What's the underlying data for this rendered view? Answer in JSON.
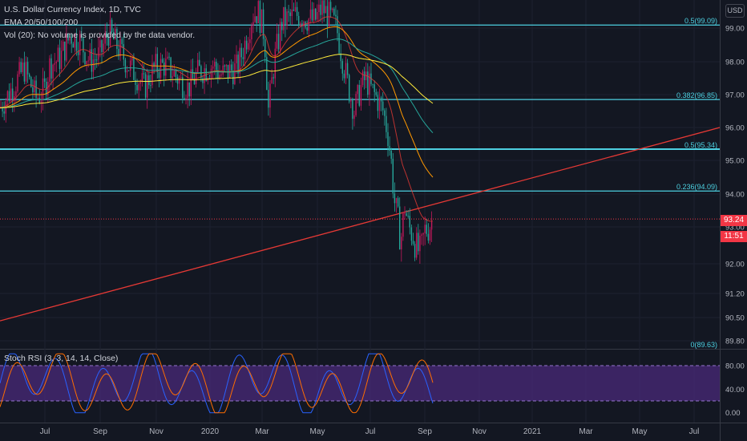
{
  "legend": {
    "title": "U.S. Dollar Currency Index, 1D, TVC",
    "ema": "EMA 20/50/100/200",
    "vol": "Vol (20): No volume is provided by the data vendor."
  },
  "currency_button": "USD",
  "price": {
    "last": "93.24",
    "countdown": "11:51"
  },
  "fib_levels": [
    {
      "label": "0.5(99.09)",
      "value": 99.09
    },
    {
      "label": "0.382(96.85)",
      "value": 96.85
    },
    {
      "label": "0.5(95.34)",
      "value": 95.34
    },
    {
      "label": "0.236(94.09)",
      "value": 94.09
    },
    {
      "label": "0(89.63)",
      "value": 89.63
    }
  ],
  "stoch_label": "Stoch RSI (3, 3, 14, 14, Close)",
  "colors": {
    "background": "#131722",
    "fib_line": "#4dd0e1",
    "trendline": "#e53935",
    "ema20": "#e53935",
    "ema50": "#ff9800",
    "ema100": "#26a69a",
    "ema200": "#ffeb3b",
    "candle_up": "#c2185b",
    "candle_down": "#26a69a",
    "stoch_band": "#4a2a7a"
  },
  "chart_data": {
    "type": "line",
    "main": {
      "y_ticks": [
        "99.00",
        "98.00",
        "97.00",
        "96.00",
        "95.00",
        "94.00",
        "93.00",
        "92.00",
        "91.20",
        "90.50",
        "89.80"
      ],
      "ylim": [
        89.6,
        100.0
      ]
    },
    "x_ticks": [
      "Jul",
      "Sep",
      "Nov",
      "2020",
      "Mar",
      "May",
      "Jul",
      "Sep",
      "Nov",
      "2021",
      "Mar",
      "May",
      "Jul"
    ],
    "trendline": {
      "start_value": 90.4,
      "end_value": 96.0
    },
    "stoch": {
      "y_ticks": [
        "80.00",
        "40.00",
        "0.00"
      ],
      "band": [
        20,
        80
      ],
      "ylim": [
        -5,
        100
      ]
    }
  }
}
